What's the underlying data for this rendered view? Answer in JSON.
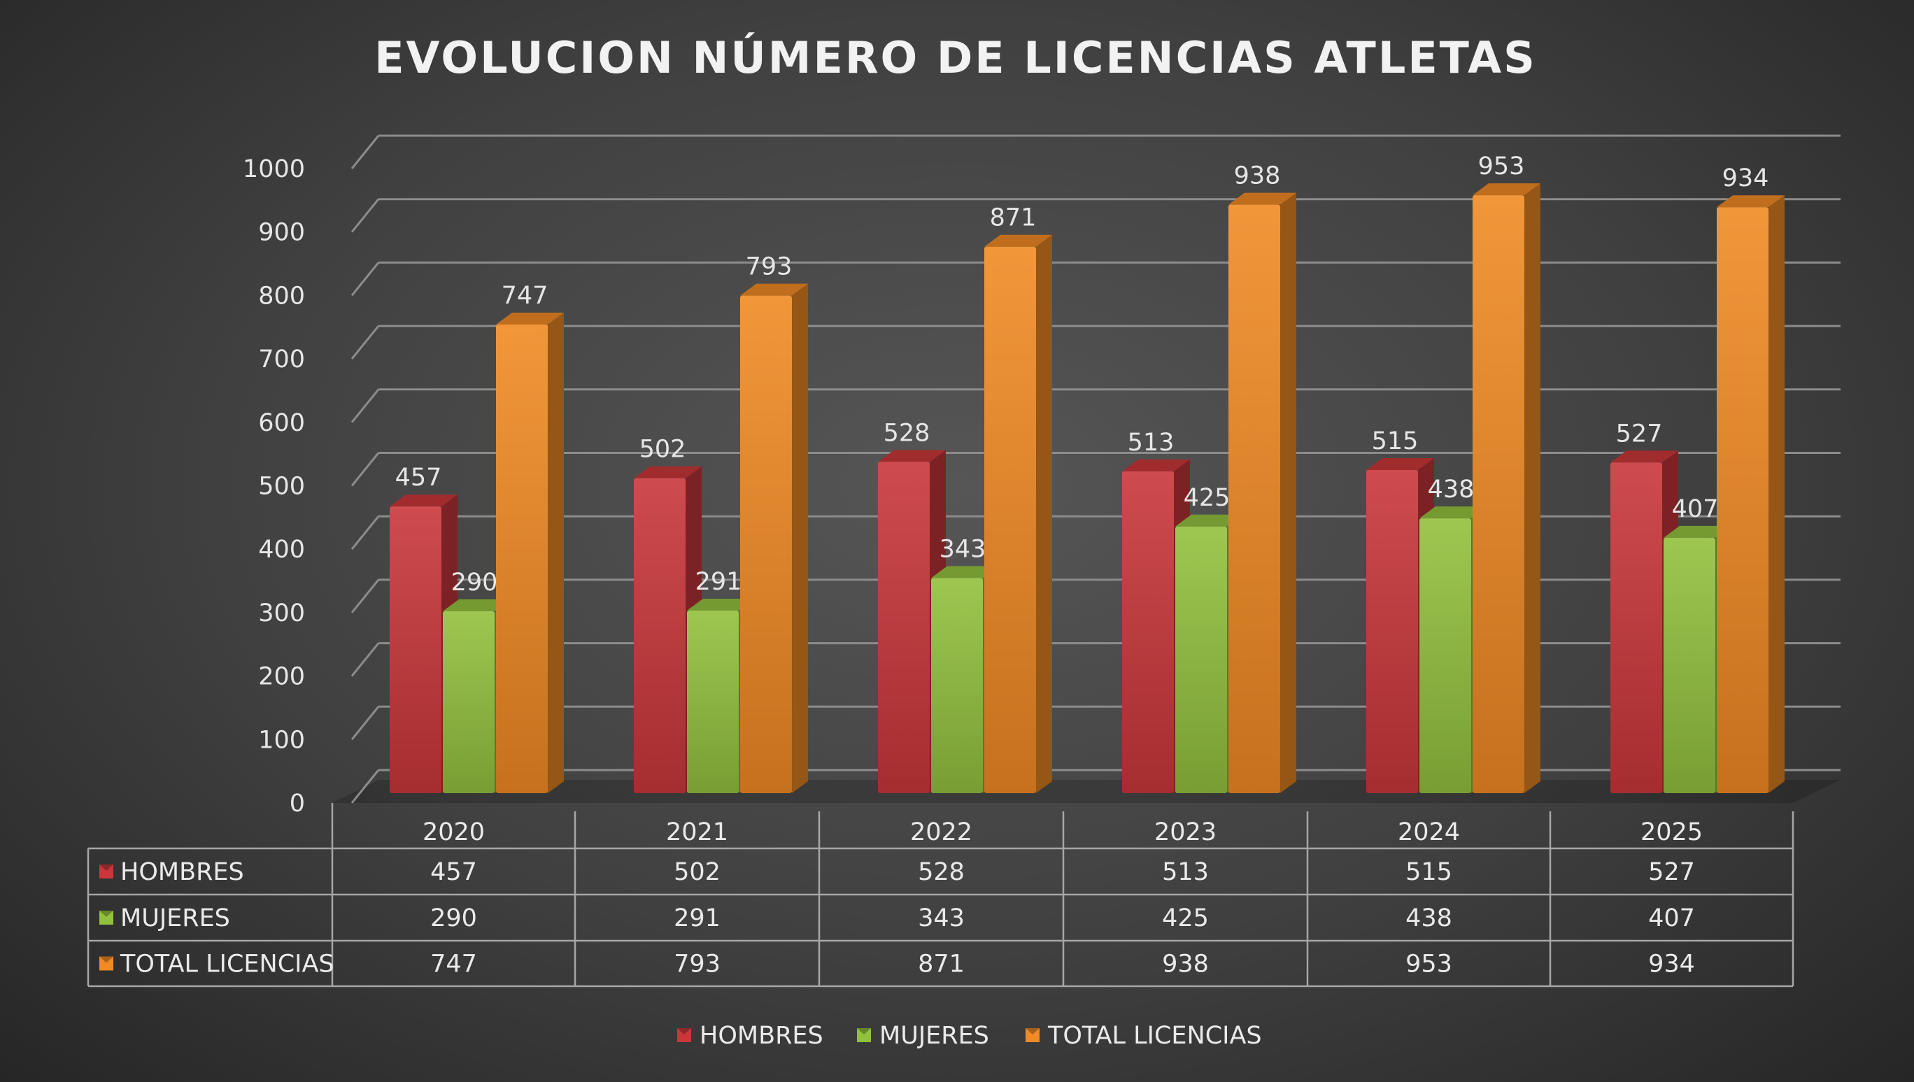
{
  "chart_data": {
    "type": "bar",
    "style": "3d-clustered-column-with-data-table",
    "title": "EVOLUCION NÚMERO DE LICENCIAS ATLETAS",
    "categories": [
      "2020",
      "2021",
      "2022",
      "2023",
      "2024",
      "2025"
    ],
    "series": [
      {
        "name": "HOMBRES",
        "values": [
          457,
          502,
          528,
          513,
          515,
          527
        ],
        "color": "#c9373a"
      },
      {
        "name": "MUJERES",
        "values": [
          290,
          291,
          343,
          425,
          438,
          407
        ],
        "color": "#92c13e"
      },
      {
        "name": "TOTAL LICENCIAS",
        "values": [
          747,
          793,
          871,
          938,
          953,
          934
        ],
        "color": "#f08a24"
      }
    ],
    "ylim": [
      0,
      1000
    ],
    "yticks": [
      0,
      100,
      200,
      300,
      400,
      500,
      600,
      700,
      800,
      900,
      1000
    ],
    "grid": true,
    "data_labels": true,
    "data_table": true,
    "legend": "bottom"
  }
}
